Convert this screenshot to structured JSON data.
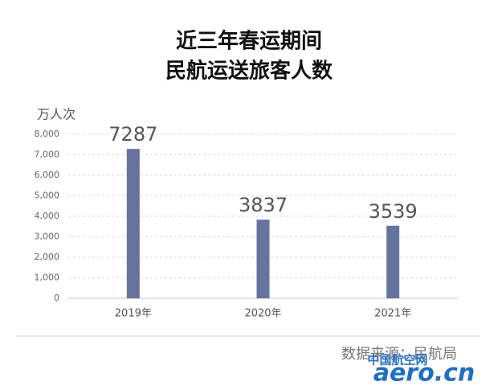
{
  "chart_data": {
    "type": "bar",
    "title_lines": [
      "近三年春运期间",
      "民航运送旅客人数"
    ],
    "y_axis_label": "万人次",
    "categories": [
      "2019年",
      "2020年",
      "2021年"
    ],
    "values": [
      7287,
      3837,
      3539
    ],
    "color": "#66739f",
    "ylim": [
      0,
      8000
    ],
    "yticks": [
      0,
      {
        "value": 1000,
        "label": "1,000"
      },
      {
        "value": 2000,
        "label": "2,000"
      },
      {
        "value": 3000,
        "label": "3,000"
      },
      {
        "value": 4000,
        "label": "4,000"
      },
      {
        "value": 5000,
        "label": "5,000"
      },
      {
        "value": 6000,
        "label": "6,000"
      },
      {
        "value": 7000,
        "label": "7,000"
      },
      {
        "value": 8000,
        "label": "8,000"
      }
    ],
    "grid": true,
    "source": "数据来源：民航局",
    "watermark": [
      "中国航空网",
      "aero.cn"
    ]
  }
}
